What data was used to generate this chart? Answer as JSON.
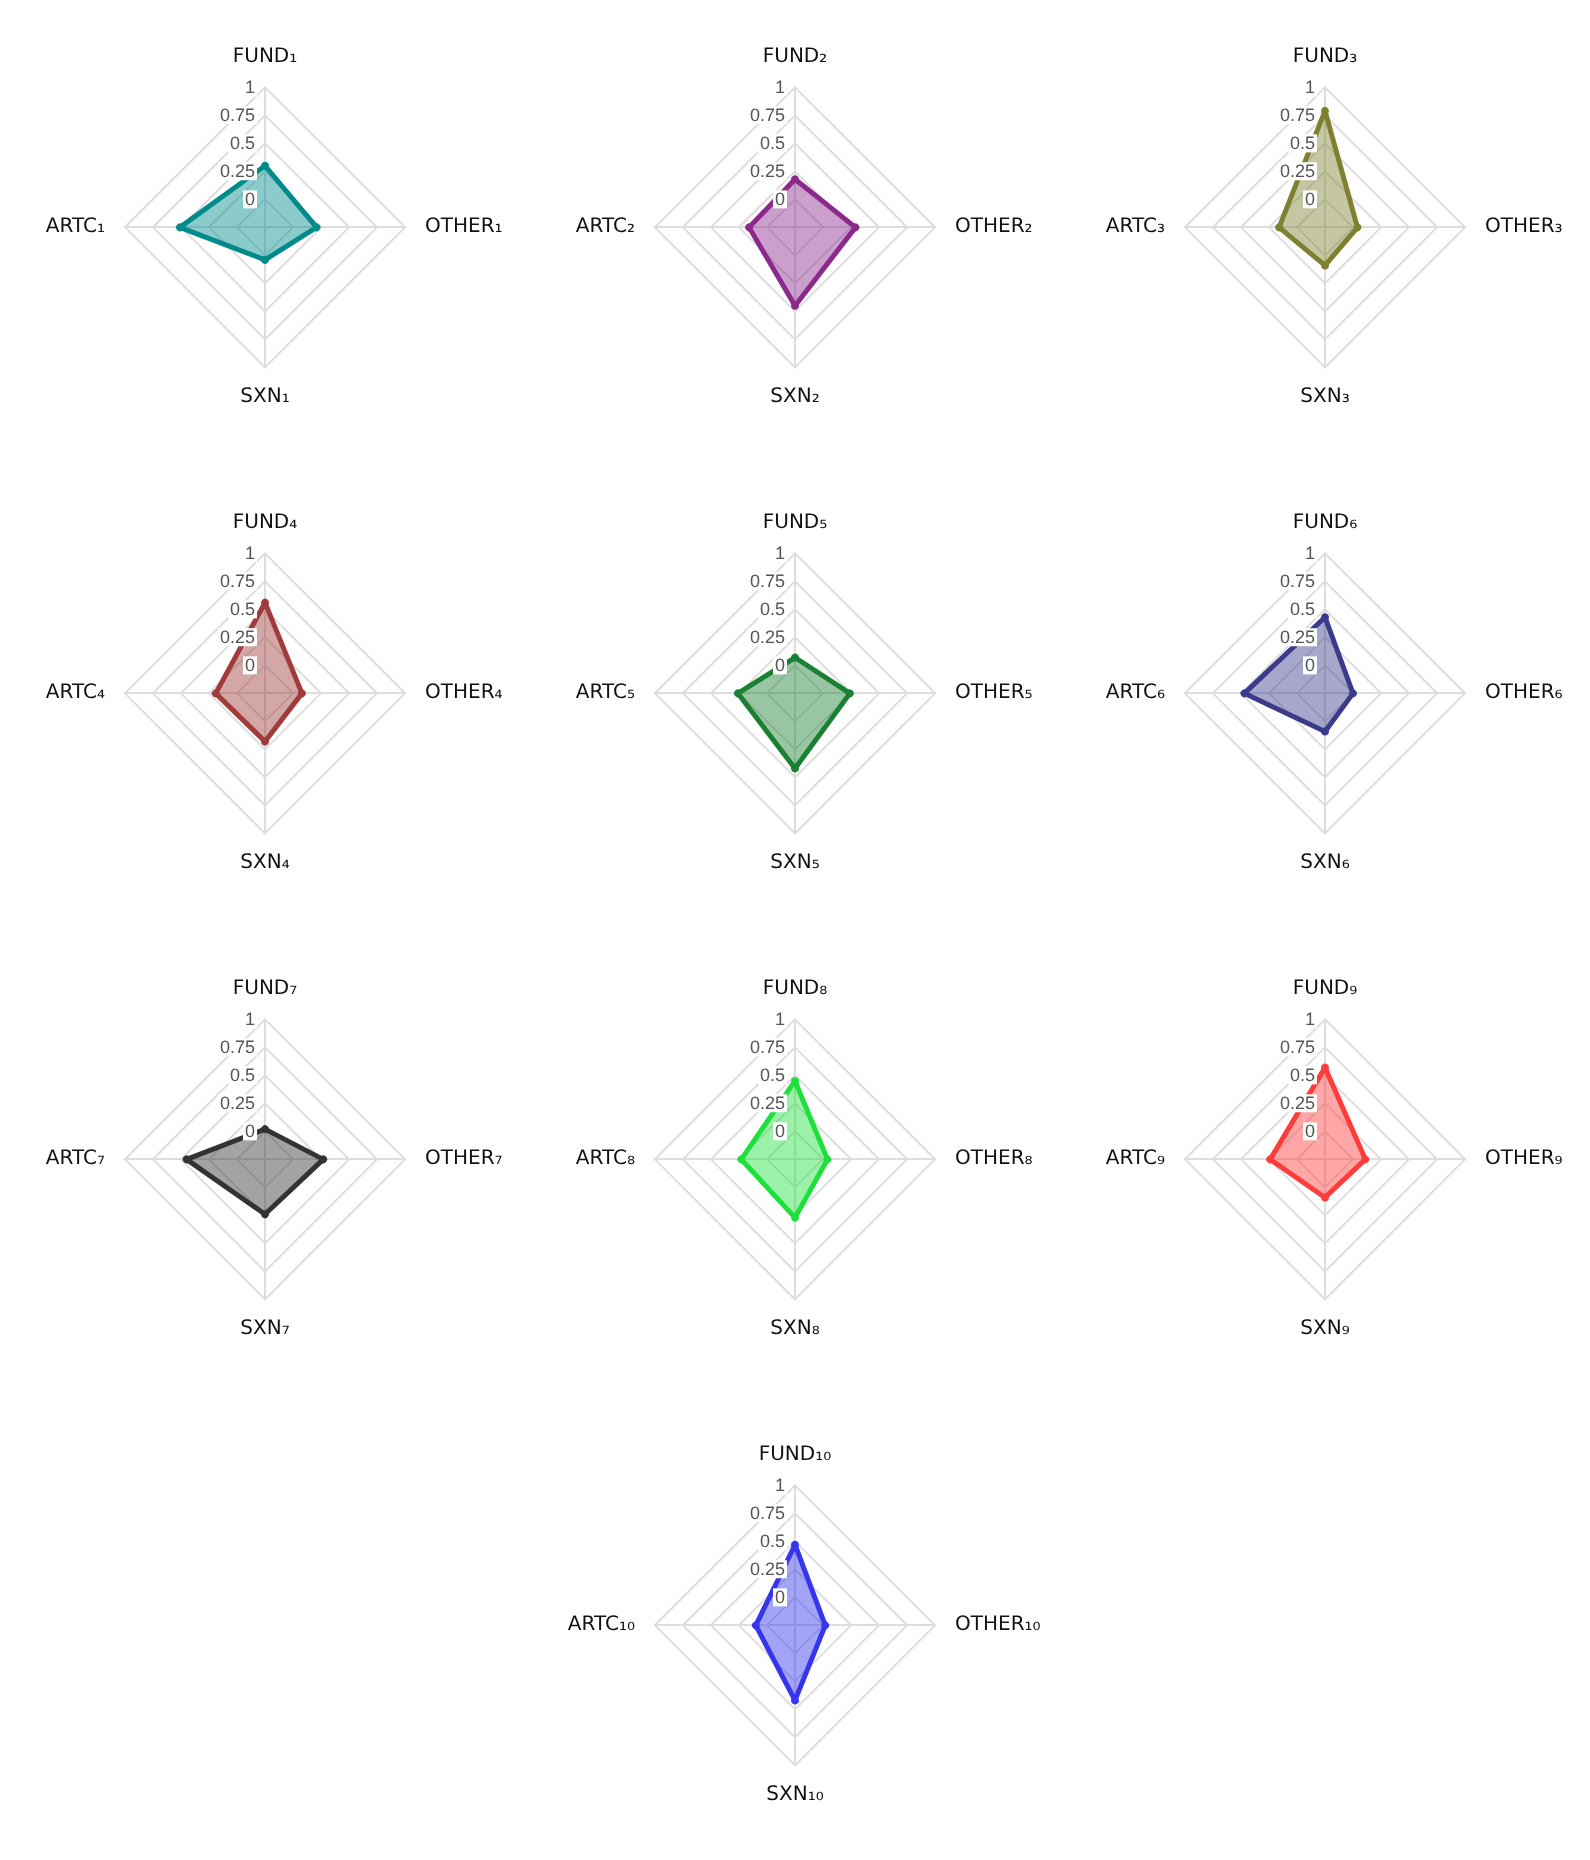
{
  "chart_data": [
    {
      "type": "radar",
      "categories": [
        "FUND₁",
        "OTHER₁",
        "SXN₁",
        "ARTC₁"
      ],
      "ylim": [
        -0.25,
        1
      ],
      "yticks": [
        0,
        0.25,
        0.5,
        0.75,
        1
      ],
      "grid": true,
      "marker": "circle",
      "series": [
        {
          "color": "#008b8b",
          "values": [
            0.3,
            0.21,
            0.04,
            0.51
          ]
        }
      ]
    },
    {
      "type": "radar",
      "categories": [
        "FUND₂",
        "OTHER₂",
        "SXN₂",
        "ARTC₂"
      ],
      "ylim": [
        -0.25,
        1
      ],
      "yticks": [
        0,
        0.25,
        0.5,
        0.75,
        1
      ],
      "grid": true,
      "marker": "circle",
      "series": [
        {
          "color": "#8b2a8b",
          "values": [
            0.18,
            0.29,
            0.45,
            0.16
          ]
        }
      ]
    },
    {
      "type": "radar",
      "categories": [
        "FUND₃",
        "OTHER₃",
        "SXN₃",
        "ARTC₃"
      ],
      "ylim": [
        -0.25,
        1
      ],
      "yticks": [
        0,
        0.25,
        0.5,
        0.75,
        1
      ],
      "grid": true,
      "marker": "circle",
      "series": [
        {
          "color": "#7f8030",
          "values": [
            0.79,
            0.04,
            0.09,
            0.16
          ]
        }
      ]
    },
    {
      "type": "radar",
      "categories": [
        "FUND₄",
        "OTHER₄",
        "SXN₄",
        "ARTC₄"
      ],
      "ylim": [
        -0.25,
        1
      ],
      "yticks": [
        0,
        0.25,
        0.5,
        0.75,
        1
      ],
      "grid": true,
      "marker": "circle",
      "series": [
        {
          "color": "#a03c3c",
          "values": [
            0.56,
            0.08,
            0.18,
            0.19
          ]
        }
      ]
    },
    {
      "type": "radar",
      "categories": [
        "FUND₅",
        "OTHER₅",
        "SXN₅",
        "ARTC₅"
      ],
      "ylim": [
        -0.25,
        1
      ],
      "yticks": [
        0,
        0.25,
        0.5,
        0.75,
        1
      ],
      "grid": true,
      "marker": "circle",
      "series": [
        {
          "color": "#1a8033",
          "values": [
            0.07,
            0.24,
            0.42,
            0.26
          ]
        }
      ]
    },
    {
      "type": "radar",
      "categories": [
        "FUND₆",
        "OTHER₆",
        "SXN₆",
        "ARTC₆"
      ],
      "ylim": [
        -0.25,
        1
      ],
      "yticks": [
        0,
        0.25,
        0.5,
        0.75,
        1
      ],
      "grid": true,
      "marker": "circle",
      "series": [
        {
          "color": "#3b3b8c",
          "values": [
            0.43,
            0.0,
            0.09,
            0.47
          ]
        }
      ]
    },
    {
      "type": "radar",
      "categories": [
        "FUND₇",
        "OTHER₇",
        "SXN₇",
        "ARTC₇"
      ],
      "ylim": [
        -0.25,
        1
      ],
      "yticks": [
        0,
        0.25,
        0.5,
        0.75,
        1
      ],
      "grid": true,
      "marker": "circle",
      "series": [
        {
          "color": "#333333",
          "values": [
            0.02,
            0.27,
            0.24,
            0.45
          ]
        }
      ]
    },
    {
      "type": "radar",
      "categories": [
        "FUND₈",
        "OTHER₈",
        "SXN₈",
        "ARTC₈"
      ],
      "ylim": [
        -0.25,
        1
      ],
      "yticks": [
        0,
        0.25,
        0.5,
        0.75,
        1
      ],
      "grid": true,
      "marker": "circle",
      "series": [
        {
          "color": "#1ee03c",
          "values": [
            0.45,
            0.04,
            0.27,
            0.23
          ]
        }
      ]
    },
    {
      "type": "radar",
      "categories": [
        "FUND₉",
        "OTHER₉",
        "SXN₉",
        "ARTC₉"
      ],
      "ylim": [
        -0.25,
        1
      ],
      "yticks": [
        0,
        0.25,
        0.5,
        0.75,
        1
      ],
      "grid": true,
      "marker": "circle",
      "series": [
        {
          "color": "#ff3c3c",
          "values": [
            0.57,
            0.11,
            0.09,
            0.24
          ]
        }
      ]
    },
    {
      "type": "radar",
      "categories": [
        "FUND₁₀",
        "OTHER₁₀",
        "SXN₁₀",
        "ARTC₁₀"
      ],
      "ylim": [
        -0.25,
        1
      ],
      "yticks": [
        0,
        0.25,
        0.5,
        0.75,
        1
      ],
      "grid": true,
      "marker": "circle",
      "series": [
        {
          "color": "#3636ee",
          "values": [
            0.47,
            0.02,
            0.42,
            0.1
          ]
        }
      ]
    }
  ]
}
